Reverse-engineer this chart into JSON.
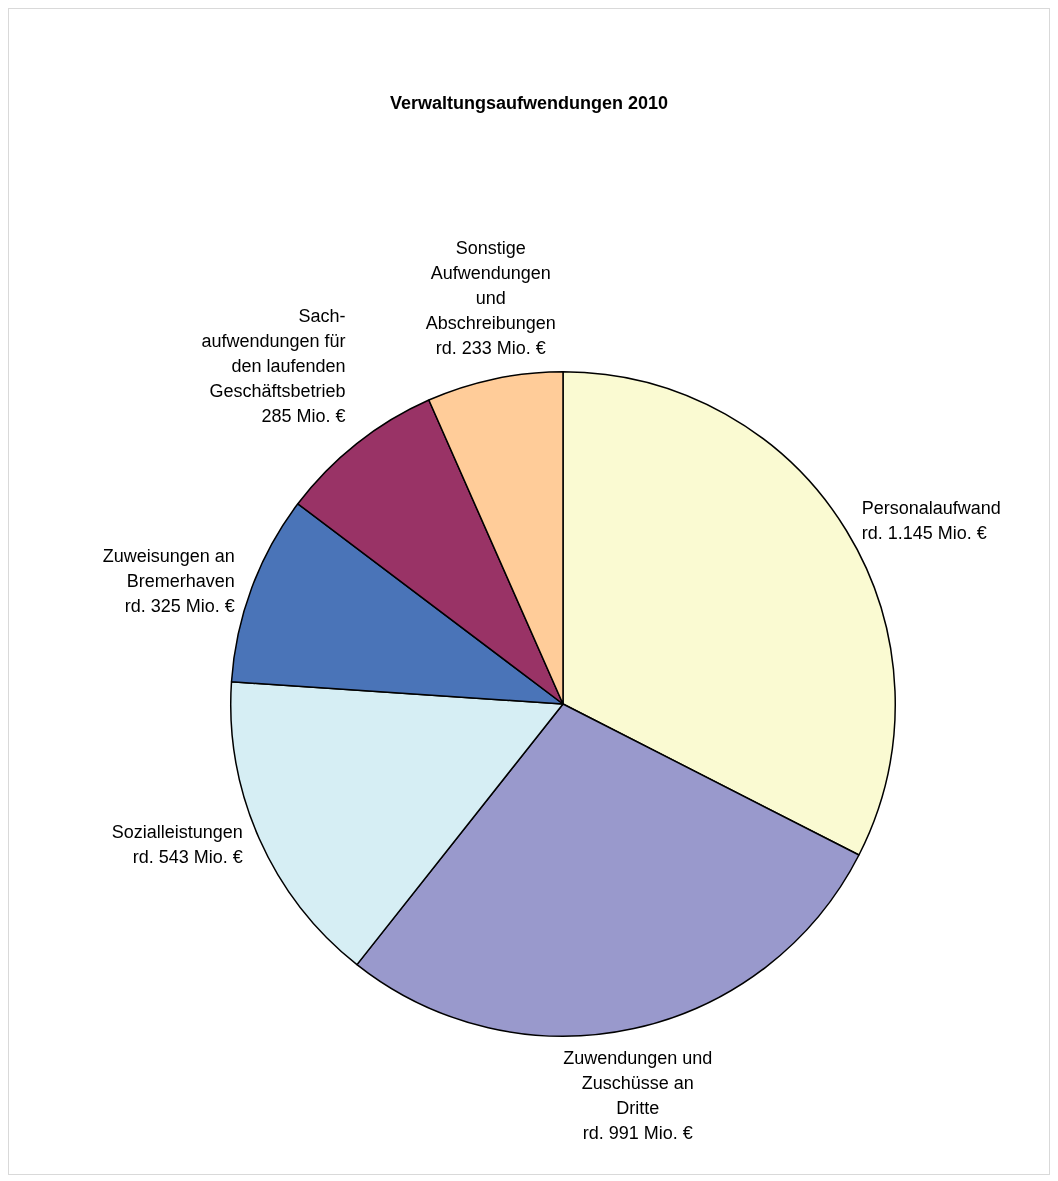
{
  "chart_data": {
    "type": "pie",
    "title": "Verwaltungsaufwendungen 2010",
    "categories": [
      "Personalaufwand",
      "Zuwendungen und\nZuschüsse an\nDritte",
      "Sozialleistungen",
      "Zuweisungen an\nBremerhaven",
      "Sach-\naufwendungen für\nden laufenden\nGeschäftsbetrieb",
      "Sonstige\nAufwendungen\nund\nAbschreibungen"
    ],
    "values": [
      1145,
      991,
      543,
      325,
      285,
      233
    ],
    "value_labels": [
      "rd. 1.145 Mio. €",
      "rd. 991 Mio. €",
      "rd. 543 Mio. €",
      "rd. 325 Mio. €",
      "285 Mio. €",
      "rd. 233 Mio. €"
    ],
    "colors": [
      "#fafad2",
      "#9999cc",
      "#d6eef4",
      "#4a74b8",
      "#993366",
      "#ffcc99"
    ],
    "legend": false
  }
}
